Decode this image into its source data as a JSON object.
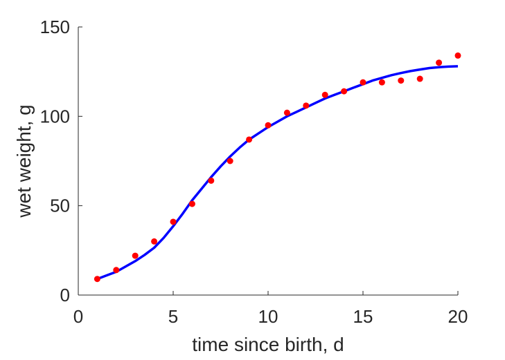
{
  "chart_data": {
    "type": "scatter",
    "title": "",
    "xlabel": "time since birth, d",
    "ylabel": "wet weight, g",
    "xlim": [
      0,
      20
    ],
    "ylim": [
      0,
      150
    ],
    "xticks": [
      0,
      5,
      10,
      15,
      20
    ],
    "yticks": [
      0,
      50,
      100,
      150
    ],
    "xtick_labels": [
      "0",
      "5",
      "10",
      "15",
      "20"
    ],
    "ytick_labels": [
      "0",
      "50",
      "100",
      "150"
    ],
    "grid": false,
    "legend": "none",
    "series": [
      {
        "kind": "points",
        "color": "#ff0000",
        "x": [
          1,
          2,
          3,
          4,
          5,
          6,
          7,
          8,
          9,
          10,
          11,
          12,
          13,
          14,
          15,
          16,
          17,
          18,
          19,
          20
        ],
        "y": [
          9,
          14,
          22,
          30,
          41,
          51,
          64,
          75,
          87,
          95,
          102,
          106,
          112,
          114,
          119,
          119,
          120,
          121,
          130,
          134
        ]
      },
      {
        "kind": "line",
        "color": "#0000ff",
        "x": [
          1,
          1.5,
          2,
          2.5,
          3,
          3.5,
          4,
          4.5,
          5,
          5.5,
          6,
          6.5,
          7,
          7.5,
          8,
          8.5,
          9,
          9.5,
          10,
          10.5,
          11,
          11.5,
          12,
          12.5,
          13,
          13.5,
          14,
          14.5,
          15,
          15.5,
          16,
          16.5,
          17,
          17.5,
          18,
          18.5,
          19,
          19.5,
          20
        ],
        "y": [
          9,
          11,
          13,
          16,
          19,
          22.5,
          26.5,
          32,
          38.5,
          45.5,
          53,
          59.5,
          66,
          72,
          77.5,
          82.5,
          87,
          90.5,
          94,
          97,
          100,
          102.5,
          105,
          107.5,
          110,
          112,
          114,
          116,
          118,
          120,
          121.5,
          123,
          124.2,
          125.3,
          126.2,
          127,
          127.5,
          127.8,
          128
        ]
      }
    ]
  }
}
